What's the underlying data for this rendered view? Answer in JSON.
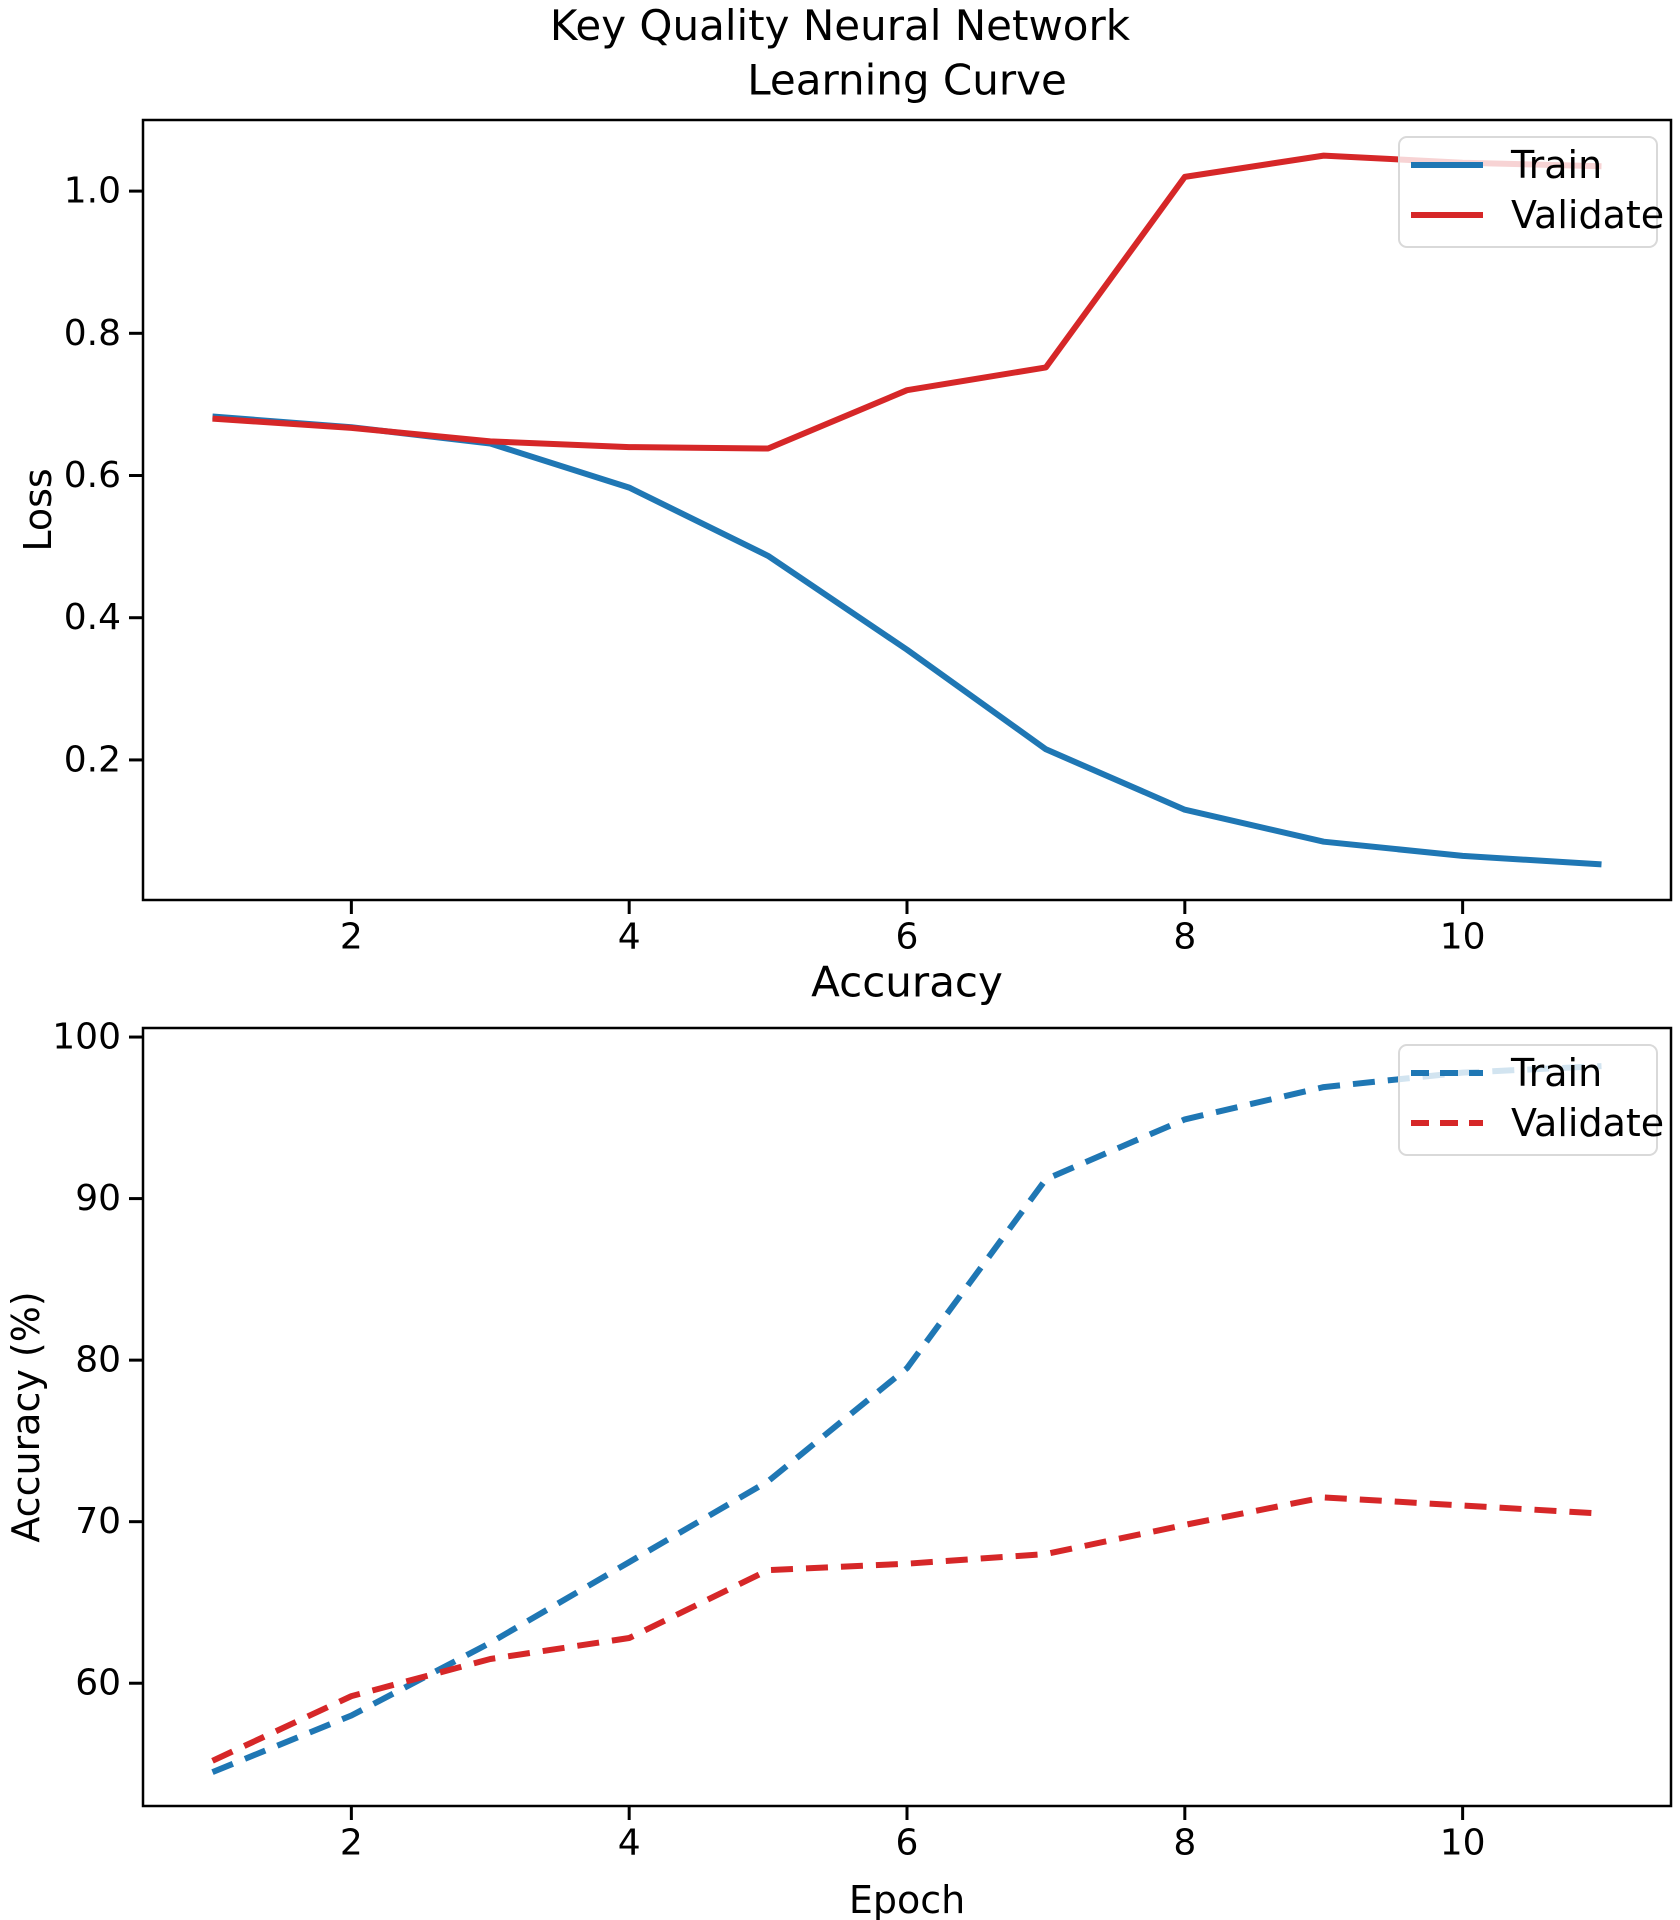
{
  "figure": {
    "suptitle": "Key Quality Neural Network",
    "background": "#ffffff"
  },
  "colors": {
    "train": "#1f77b4",
    "validate": "#d62728",
    "spine": "#000000",
    "text": "#000000",
    "legend_border": "#d9d9d9",
    "legend_fill": "#ffffff"
  },
  "chart_data": [
    {
      "type": "line",
      "title": "Learning Curve",
      "xlabel": "",
      "ylabel": "Loss",
      "x": [
        1,
        2,
        3,
        4,
        5,
        6,
        7,
        8,
        9,
        10,
        11
      ],
      "xlim": [
        0.5,
        11.5
      ],
      "ylim": [
        0.003,
        1.1
      ],
      "xtick_values": [
        2,
        4,
        6,
        8,
        10
      ],
      "xtick_labels": [
        "2",
        "4",
        "6",
        "8",
        "10"
      ],
      "ytick_values": [
        0.2,
        0.4,
        0.6,
        0.8,
        1.0
      ],
      "ytick_labels": [
        "0.2",
        "0.4",
        "0.6",
        "0.8",
        "1.0"
      ],
      "grid": false,
      "legend_position": "upper right",
      "series": [
        {
          "name": "Train",
          "color_key": "train",
          "linestyle": "solid",
          "values": [
            0.683,
            0.668,
            0.645,
            0.583,
            0.487,
            0.355,
            0.215,
            0.13,
            0.085,
            0.065,
            0.053
          ]
        },
        {
          "name": "Validate",
          "color_key": "validate",
          "linestyle": "solid",
          "values": [
            0.68,
            0.667,
            0.648,
            0.64,
            0.638,
            0.72,
            0.752,
            1.02,
            1.05,
            1.04,
            1.035
          ]
        }
      ]
    },
    {
      "type": "line",
      "title": "Accuracy",
      "xlabel": "Epoch",
      "ylabel": "Accuracy (%)",
      "x": [
        1,
        2,
        3,
        4,
        5,
        6,
        7,
        8,
        9,
        10,
        11
      ],
      "xlim": [
        0.5,
        11.5
      ],
      "ylim": [
        52.4,
        100.56
      ],
      "xtick_values": [
        2,
        4,
        6,
        8,
        10
      ],
      "xtick_labels": [
        "2",
        "4",
        "6",
        "8",
        "10"
      ],
      "ytick_values": [
        60,
        70,
        80,
        90,
        100
      ],
      "ytick_labels": [
        "60",
        "70",
        "80",
        "90",
        "100"
      ],
      "grid": false,
      "legend_position": "upper right",
      "series": [
        {
          "name": "Train",
          "color_key": "train",
          "linestyle": "dashed",
          "values": [
            54.5,
            58.0,
            62.5,
            67.5,
            72.5,
            79.5,
            91.2,
            94.9,
            96.9,
            97.8,
            98.2
          ]
        },
        {
          "name": "Validate",
          "color_key": "validate",
          "linestyle": "dashed",
          "values": [
            55.2,
            59.2,
            61.5,
            62.8,
            67.0,
            67.4,
            68.0,
            69.8,
            71.5,
            71.0,
            70.5
          ]
        }
      ]
    }
  ]
}
